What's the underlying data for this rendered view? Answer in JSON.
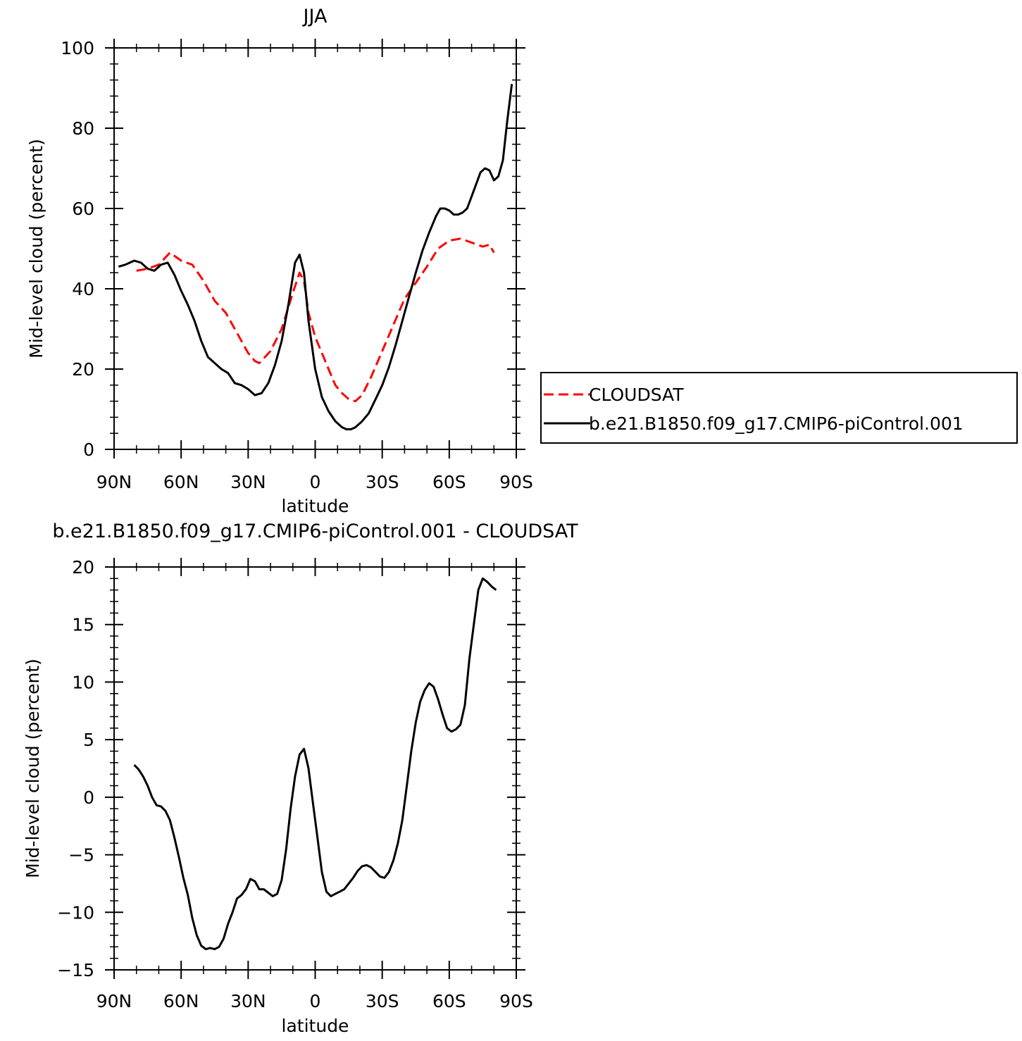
{
  "chart_data": [
    {
      "type": "line",
      "title": "JJA",
      "xlabel": "latitude",
      "ylabel": "Mid-level cloud (percent)",
      "xlim": [
        -90,
        90
      ],
      "ylim": [
        0,
        100
      ],
      "x_ticks": [
        {
          "v": -90,
          "label": "90N"
        },
        {
          "v": -60,
          "label": "60N"
        },
        {
          "v": -30,
          "label": "30N"
        },
        {
          "v": 0,
          "label": "0"
        },
        {
          "v": 30,
          "label": "30S"
        },
        {
          "v": 60,
          "label": "60S"
        },
        {
          "v": 90,
          "label": "90S"
        }
      ],
      "y_ticks": [
        {
          "v": 0,
          "label": "0"
        },
        {
          "v": 20,
          "label": "20"
        },
        {
          "v": 40,
          "label": "40"
        },
        {
          "v": 60,
          "label": "60"
        },
        {
          "v": 80,
          "label": "80"
        },
        {
          "v": 100,
          "label": "100"
        }
      ],
      "legend": {
        "placement": "right"
      },
      "series": [
        {
          "name": "CLOUDSAT",
          "color": "#ff0000",
          "dash": "dashed",
          "x": [
            -80,
            -75,
            -70,
            -65,
            -60,
            -55,
            -50,
            -45,
            -40,
            -35,
            -30,
            -27,
            -25,
            -20,
            -15,
            -10,
            -7,
            -5,
            -3,
            0,
            3,
            6,
            9,
            12,
            15,
            18,
            21,
            25,
            30,
            35,
            40,
            45,
            50,
            55,
            60,
            65,
            70,
            75,
            78,
            80
          ],
          "y": [
            44.5,
            45,
            46,
            49,
            47,
            46,
            42,
            37,
            34,
            29,
            24,
            22,
            21.5,
            24.5,
            30,
            39,
            44,
            42,
            34,
            28,
            24,
            20,
            16,
            14,
            12.5,
            12,
            13.5,
            18,
            24.5,
            31,
            37.5,
            41.5,
            45.5,
            50,
            52,
            52.5,
            51.5,
            50.5,
            51,
            49
          ]
        },
        {
          "name": "b.e21.B1850.f09_g17.CMIP6-piControl.001",
          "color": "#000000",
          "dash": "solid",
          "x": [
            -88,
            -85,
            -81,
            -78,
            -75,
            -72,
            -69,
            -66,
            -63,
            -60,
            -57,
            -54,
            -51,
            -48,
            -45,
            -42,
            -39,
            -36,
            -33,
            -30,
            -27,
            -24,
            -21,
            -18,
            -15,
            -12,
            -9,
            -7,
            -5,
            -3,
            0,
            3,
            6,
            9,
            12,
            14,
            16,
            18,
            21,
            24,
            27,
            30,
            33,
            36,
            39,
            42,
            45,
            48,
            51,
            54,
            56,
            58,
            60,
            62,
            64,
            66,
            68,
            70,
            72,
            74,
            76,
            78,
            80,
            82,
            84,
            86,
            88
          ],
          "y": [
            45.5,
            46,
            47,
            46.5,
            45,
            44.5,
            46,
            46.5,
            43.5,
            39.5,
            36,
            32,
            27,
            23,
            21.5,
            20,
            19,
            16.5,
            16,
            15,
            13.5,
            14,
            16.5,
            21,
            27,
            36,
            46.5,
            48.5,
            44,
            32,
            20,
            13,
            9.5,
            7,
            5.5,
            5,
            5,
            5.5,
            7,
            9,
            12.5,
            16,
            20.5,
            26,
            32,
            38,
            44,
            49.5,
            54,
            58,
            60,
            60,
            59.5,
            58.5,
            58.5,
            59,
            60,
            63,
            66,
            69,
            70,
            69.5,
            67,
            68,
            72,
            82,
            91
          ]
        }
      ]
    },
    {
      "type": "line",
      "title": "b.e21.B1850.f09_g17.CMIP6-piControl.001 - CLOUDSAT",
      "xlabel": "latitude",
      "ylabel": "Mid-level cloud (percent)",
      "xlim": [
        -90,
        90
      ],
      "ylim": [
        -15,
        20
      ],
      "x_ticks": [
        {
          "v": -90,
          "label": "90N"
        },
        {
          "v": -60,
          "label": "60N"
        },
        {
          "v": -30,
          "label": "30N"
        },
        {
          "v": 0,
          "label": "0"
        },
        {
          "v": 30,
          "label": "30S"
        },
        {
          "v": 60,
          "label": "60S"
        },
        {
          "v": 90,
          "label": "90S"
        }
      ],
      "y_ticks": [
        {
          "v": -15,
          "label": "−15"
        },
        {
          "v": -10,
          "label": "−10"
        },
        {
          "v": -5,
          "label": "−5"
        },
        {
          "v": 0,
          "label": "0"
        },
        {
          "v": 5,
          "label": "5"
        },
        {
          "v": 10,
          "label": "10"
        },
        {
          "v": 15,
          "label": "15"
        },
        {
          "v": 20,
          "label": "20"
        }
      ],
      "series": [
        {
          "color": "#000000",
          "dash": "solid",
          "x": [
            -81,
            -79,
            -77,
            -75,
            -73,
            -71,
            -69,
            -67,
            -65,
            -63,
            -61,
            -59,
            -57,
            -55,
            -53,
            -51,
            -49,
            -47,
            -45,
            -43,
            -41,
            -39,
            -37,
            -35,
            -33,
            -31,
            -29,
            -27,
            -25,
            -23,
            -21,
            -19,
            -17,
            -15,
            -13,
            -11,
            -9,
            -7,
            -5,
            -3,
            -1,
            1,
            3,
            5,
            7,
            9,
            11,
            13,
            15,
            17,
            19,
            21,
            23,
            25,
            27,
            29,
            31,
            33,
            35,
            37,
            39,
            41,
            43,
            45,
            47,
            49,
            51,
            53,
            55,
            57,
            59,
            61,
            63,
            65,
            67,
            69,
            71,
            73,
            75,
            77,
            79,
            81
          ],
          "y": [
            2.8,
            2.4,
            1.8,
            1.0,
            0.0,
            -0.7,
            -0.8,
            -1.2,
            -2.0,
            -3.5,
            -5.2,
            -7.0,
            -8.5,
            -10.5,
            -12.0,
            -12.9,
            -13.2,
            -13.1,
            -13.2,
            -13.0,
            -12.3,
            -11.0,
            -10.0,
            -8.8,
            -8.5,
            -8.0,
            -7.1,
            -7.3,
            -8.0,
            -8.0,
            -8.3,
            -8.6,
            -8.4,
            -7.2,
            -4.5,
            -1.0,
            1.8,
            3.7,
            4.2,
            2.5,
            -0.5,
            -3.5,
            -6.5,
            -8.2,
            -8.6,
            -8.4,
            -8.2,
            -8.0,
            -7.5,
            -7.0,
            -6.4,
            -6.0,
            -5.9,
            -6.1,
            -6.5,
            -6.9,
            -7.0,
            -6.5,
            -5.5,
            -4.0,
            -2.0,
            1.0,
            4.0,
            6.5,
            8.3,
            9.3,
            9.9,
            9.6,
            8.5,
            7.2,
            6.0,
            5.7,
            5.9,
            6.3,
            8.0,
            12.0,
            15.0,
            18.0,
            19.0,
            18.7,
            18.3,
            18.0
          ]
        }
      ]
    }
  ]
}
